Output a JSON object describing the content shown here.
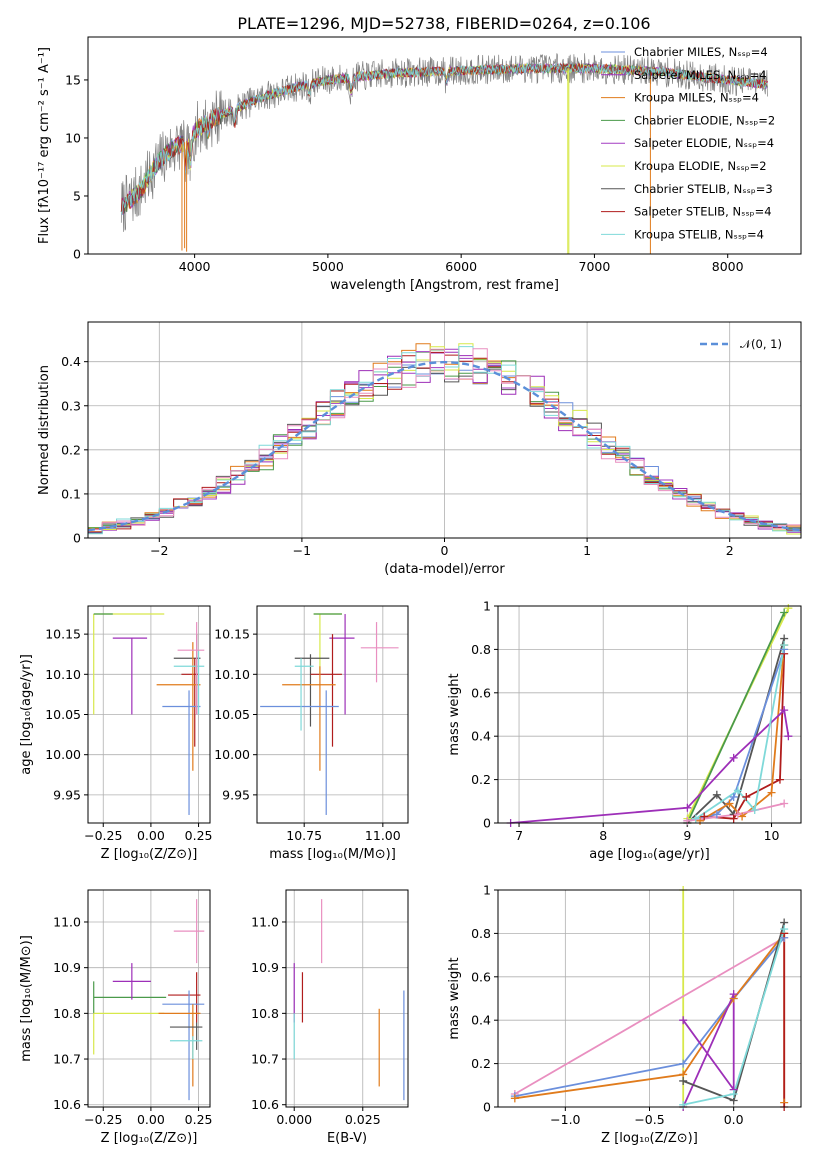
{
  "figure_title": "PLATE=1296, MJD=52738, FIBERID=0264, z=0.106",
  "colors": {
    "Chabrier MILES": "#6b8fdc",
    "Salpeter MILES": "#9d2fb8",
    "Kroupa MILES": "#e07b1c",
    "Chabrier ELODIE": "#4a9a4a",
    "Salpeter ELODIE": "#a33cc2",
    "Kroupa ELODIE": "#d7e84a",
    "Chabrier STELIB": "#555555",
    "Salpeter STELIB": "#b01c1c",
    "Kroupa STELIB": "#7fd9d9",
    "pink": "#e98fc0",
    "data": "#808080",
    "normal": "#5b8fd9"
  },
  "chart_data": [
    {
      "id": "spectrum",
      "type": "line",
      "title": "PLATE=1296, MJD=52738, FIBERID=0264, z=0.106",
      "xlabel": "wavelength [Angstrom, rest frame]",
      "ylabel": "Flux [fλ10⁻¹⁷ erg cm⁻² s⁻¹ A⁻¹]",
      "xlim": [
        3200,
        8550
      ],
      "ylim": [
        0,
        18.7
      ],
      "xticks": [
        4000,
        5000,
        6000,
        7000,
        8000
      ],
      "yticks": [
        0,
        5,
        10,
        15
      ],
      "grid": false,
      "legend_position": "upper-right",
      "legend": [
        "Chabrier MILES, Nₛₛₚ=4",
        "Salpeter MILES, Nₛₛₚ=4",
        "Kroupa MILES, Nₛₛₚ=4",
        "Chabrier ELODIE, Nₛₛₚ=2",
        "Salpeter ELODIE, Nₛₛₚ=4",
        "Kroupa ELODIE, Nₛₛₚ=2",
        "Chabrier STELIB, Nₛₛₚ=3",
        "Salpeter STELIB, Nₛₛₚ=4",
        "Kroupa STELIB, Nₛₛₚ=4"
      ],
      "x_range": [
        3450,
        8300
      ],
      "continuum": [
        [
          3450,
          4
        ],
        [
          3600,
          5.5
        ],
        [
          3700,
          7.5
        ],
        [
          3800,
          8.8
        ],
        [
          3950,
          9.8
        ],
        [
          4000,
          10.5
        ],
        [
          4100,
          11.5
        ],
        [
          4300,
          12.5
        ],
        [
          4500,
          13.5
        ],
        [
          4800,
          14.5
        ],
        [
          5000,
          15
        ],
        [
          5500,
          15.6
        ],
        [
          6000,
          15.8
        ],
        [
          6500,
          16
        ],
        [
          7000,
          16
        ],
        [
          7500,
          15.7
        ],
        [
          8000,
          15
        ],
        [
          8300,
          14.6
        ]
      ],
      "features": [
        {
          "x": 3933,
          "depth": 2.5
        },
        {
          "x": 3968,
          "depth": 2.5
        },
        {
          "x": 4101,
          "depth": 1
        },
        {
          "x": 4300,
          "depth": 1.5
        },
        {
          "x": 4861,
          "depth": 1
        },
        {
          "x": 5175,
          "depth": 1.5
        },
        {
          "x": 5890,
          "depth": 1
        }
      ],
      "glitches": [
        {
          "x": 3905,
          "y": 0.3
        },
        {
          "x": 3925,
          "y": 0.5
        },
        {
          "x": 3940,
          "y": 0.2
        },
        {
          "x": 6800,
          "y": 0
        },
        {
          "x": 6808,
          "y": 0
        },
        {
          "x": 7420,
          "y": 0
        }
      ]
    },
    {
      "id": "residuals",
      "type": "line",
      "xlabel": "(data-model)/error",
      "ylabel": "Normed distribution",
      "xlim": [
        -2.5,
        2.5
      ],
      "ylim": [
        0,
        0.49
      ],
      "xticks": [
        -2,
        -1,
        0,
        1,
        2
      ],
      "yticks": [
        0.0,
        0.1,
        0.2,
        0.3,
        0.4
      ],
      "grid": true,
      "legend_position": "upper-right",
      "legend": [
        "𝒩(0, 1)"
      ],
      "bin_width": 0.1,
      "mu": 0,
      "sigma": 1
    },
    {
      "id": "age-vs-Z",
      "type": "scatter",
      "xlabel": "Z [log₁₀(Z/Z⊙)]",
      "ylabel": "age  [log₁₀(age/yr)]",
      "xlim": [
        -0.33,
        0.31
      ],
      "ylim": [
        9.915,
        10.185
      ],
      "xticks": [
        -0.25,
        0,
        0.25
      ],
      "xticklabels": [
        "−0.25",
        "0.00",
        "0.25"
      ],
      "yticks": [
        9.95,
        10.0,
        10.05,
        10.1,
        10.15
      ],
      "yticklabels": [
        "9.95",
        "10.00",
        "10.05",
        "10.10",
        "10.15"
      ],
      "grid": true,
      "points": [
        {
          "c": "Kroupa ELODIE",
          "x": -0.3,
          "y": 10.175,
          "xl": -0.3,
          "xh": 0.07,
          "yl": 10.05,
          "yh": 10.175
        },
        {
          "c": "Chabrier ELODIE",
          "x": -0.3,
          "y": 10.175,
          "xl": -0.3,
          "xh": -0.2,
          "yl": 10.175,
          "yh": 10.175
        },
        {
          "c": "Salpeter MILES",
          "x": -0.1,
          "y": 10.145,
          "xl": -0.2,
          "xh": -0.02,
          "yl": 10.05,
          "yh": 10.145
        },
        {
          "c": "Chabrier STELIB",
          "x": 0.24,
          "y": 10.12,
          "xl": 0.12,
          "xh": 0.26,
          "yl": 10.05,
          "yh": 10.15
        },
        {
          "c": "Salpeter STELIB",
          "x": 0.23,
          "y": 10.1,
          "xl": 0.16,
          "xh": 0.25,
          "yl": 10.01,
          "yh": 10.12
        },
        {
          "c": "Kroupa MILES",
          "x": 0.22,
          "y": 10.087,
          "xl": 0.03,
          "xh": 0.26,
          "yl": 9.98,
          "yh": 10.14
        },
        {
          "c": "Chabrier MILES",
          "x": 0.2,
          "y": 10.06,
          "xl": 0.06,
          "xh": 0.26,
          "yl": 9.925,
          "yh": 10.08
        },
        {
          "c": "Kroupa STELIB",
          "x": 0.25,
          "y": 10.11,
          "xl": 0.12,
          "xh": 0.28,
          "yl": 10.05,
          "yh": 10.13
        },
        {
          "c": "pink",
          "x": 0.24,
          "y": 10.13,
          "xl": 0.14,
          "xh": 0.28,
          "yl": 10.05,
          "yh": 10.165
        }
      ]
    },
    {
      "id": "age-vs-mass",
      "type": "scatter",
      "xlabel": "mass [log₁₀(M/M⊙)]",
      "ylabel": "",
      "xlim": [
        10.6,
        11.08
      ],
      "ylim": [
        9.915,
        10.185
      ],
      "xticks": [
        10.75,
        11.0
      ],
      "xticklabels": [
        "10.75",
        "11.00"
      ],
      "yticks": [
        9.95,
        10.0,
        10.05,
        10.1,
        10.15
      ],
      "yticklabels": [
        "9.95",
        "10.00",
        "10.05",
        "10.10",
        "10.15"
      ],
      "grid": true,
      "points": [
        {
          "c": "Kroupa ELODIE",
          "x": 10.8,
          "y": 10.175,
          "xl": 10.78,
          "xh": 10.87,
          "yl": 10.1,
          "yh": 10.175
        },
        {
          "c": "Chabrier ELODIE",
          "x": 10.84,
          "y": 10.175,
          "xl": 10.78,
          "xh": 10.87,
          "yl": 10.175,
          "yh": 10.175
        },
        {
          "c": "Salpeter MILES",
          "x": 10.88,
          "y": 10.145,
          "xl": 10.83,
          "xh": 10.91,
          "yl": 10.05,
          "yh": 10.175
        },
        {
          "c": "Chabrier STELIB",
          "x": 10.77,
          "y": 10.12,
          "xl": 10.72,
          "xh": 10.83,
          "yl": 10.035,
          "yh": 10.125
        },
        {
          "c": "Salpeter STELIB",
          "x": 10.84,
          "y": 10.1,
          "xl": 10.77,
          "xh": 10.87,
          "yl": 10.01,
          "yh": 10.15
        },
        {
          "c": "Kroupa MILES",
          "x": 10.8,
          "y": 10.087,
          "xl": 10.68,
          "xh": 10.85,
          "yl": 9.98,
          "yh": 10.11
        },
        {
          "c": "Chabrier MILES",
          "x": 10.82,
          "y": 10.06,
          "xl": 10.61,
          "xh": 10.86,
          "yl": 9.925,
          "yh": 10.08
        },
        {
          "c": "Kroupa STELIB",
          "x": 10.74,
          "y": 10.11,
          "xl": 10.72,
          "xh": 10.78,
          "yl": 10.03,
          "yh": 10.12
        },
        {
          "c": "pink",
          "x": 10.98,
          "y": 10.133,
          "xl": 10.93,
          "xh": 11.05,
          "yl": 10.09,
          "yh": 10.165
        }
      ]
    },
    {
      "id": "mass-weight-vs-age",
      "type": "line",
      "xlabel": "age  [log₁₀(age/yr)]",
      "ylabel": "mass weight",
      "xlim": [
        6.75,
        10.35
      ],
      "ylim": [
        0,
        1.0
      ],
      "xticks": [
        7,
        8,
        9,
        10
      ],
      "yticks": [
        0.0,
        0.2,
        0.4,
        0.6,
        0.8,
        1.0
      ],
      "grid": true,
      "series": [
        {
          "c": "Kroupa ELODIE",
          "x": [
            9.0,
            10.2
          ],
          "y": [
            0.02,
            0.99
          ]
        },
        {
          "c": "Chabrier ELODIE",
          "x": [
            9.0,
            10.15
          ],
          "y": [
            0.0,
            0.97
          ]
        },
        {
          "c": "Chabrier STELIB",
          "x": [
            9.0,
            9.35,
            9.55,
            10.15
          ],
          "y": [
            0.0,
            0.13,
            0.04,
            0.85
          ]
        },
        {
          "c": "Salpeter STELIB",
          "x": [
            9.2,
            9.55,
            9.7,
            10.1,
            10.15
          ],
          "y": [
            0.03,
            0.02,
            0.12,
            0.2,
            0.78
          ]
        },
        {
          "c": "Chabrier MILES",
          "x": [
            9.0,
            9.35,
            9.55,
            10.15
          ],
          "y": [
            0.01,
            0.04,
            0.12,
            0.8
          ]
        },
        {
          "c": "Kroupa MILES",
          "x": [
            9.15,
            9.5,
            9.65,
            10.0,
            10.15
          ],
          "y": [
            0.01,
            0.09,
            0.03,
            0.14,
            0.82
          ]
        },
        {
          "c": "Salpeter MILES",
          "x": [
            6.9,
            9.0,
            9.55,
            10.15,
            10.2
          ],
          "y": [
            0.0,
            0.07,
            0.3,
            0.52,
            0.4
          ]
        },
        {
          "c": "Kroupa STELIB",
          "x": [
            9.1,
            9.6,
            9.8,
            10.15
          ],
          "y": [
            0.02,
            0.15,
            0.06,
            0.82
          ]
        },
        {
          "c": "pink",
          "x": [
            9.0,
            9.6,
            10.15
          ],
          "y": [
            0.01,
            0.04,
            0.09
          ]
        }
      ]
    },
    {
      "id": "mass-vs-Z",
      "type": "scatter",
      "xlabel": "Z [log₁₀(Z/Z⊙)]",
      "ylabel": "mass [log₁₀(M/M⊙)]",
      "xlim": [
        -0.33,
        0.31
      ],
      "ylim": [
        10.595,
        11.07
      ],
      "xticks": [
        -0.25,
        0,
        0.25
      ],
      "xticklabels": [
        "−0.25",
        "0.00",
        "0.25"
      ],
      "yticks": [
        10.6,
        10.7,
        10.8,
        10.9,
        11.0
      ],
      "yticklabels": [
        "10.6",
        "10.7",
        "10.8",
        "10.9",
        "11.0"
      ],
      "grid": true,
      "points": [
        {
          "c": "Chabrier ELODIE",
          "x": -0.3,
          "y": 10.835,
          "xl": -0.3,
          "xh": 0.08,
          "yl": 10.8,
          "yh": 10.87
        },
        {
          "c": "Kroupa ELODIE",
          "x": -0.3,
          "y": 10.8,
          "xl": -0.3,
          "xh": 0.07,
          "yl": 10.71,
          "yh": 10.8
        },
        {
          "c": "Salpeter MILES",
          "x": -0.1,
          "y": 10.87,
          "xl": -0.2,
          "xh": 0.0,
          "yl": 10.83,
          "yh": 10.91
        },
        {
          "c": "pink",
          "x": 0.24,
          "y": 10.98,
          "xl": 0.12,
          "xh": 0.28,
          "yl": 10.91,
          "yh": 11.05
        },
        {
          "c": "Salpeter STELIB",
          "x": 0.24,
          "y": 10.84,
          "xl": 0.09,
          "xh": 0.26,
          "yl": 10.78,
          "yh": 10.89
        },
        {
          "c": "Chabrier MILES",
          "x": 0.2,
          "y": 10.82,
          "xl": 0.06,
          "xh": 0.28,
          "yl": 10.61,
          "yh": 10.85
        },
        {
          "c": "Kroupa MILES",
          "x": 0.22,
          "y": 10.8,
          "xl": 0.04,
          "xh": 0.26,
          "yl": 10.64,
          "yh": 10.82
        },
        {
          "c": "Chabrier STELIB",
          "x": 0.24,
          "y": 10.77,
          "xl": 0.1,
          "xh": 0.27,
          "yl": 10.72,
          "yh": 10.78
        },
        {
          "c": "Kroupa STELIB",
          "x": 0.22,
          "y": 10.74,
          "xl": 0.1,
          "xh": 0.27,
          "yl": 10.7,
          "yh": 10.75
        }
      ]
    },
    {
      "id": "mass-vs-EBV",
      "type": "scatter",
      "xlabel": "E(B-V)",
      "ylabel": "",
      "xlim": [
        -0.003,
        0.0415
      ],
      "ylim": [
        10.595,
        11.07
      ],
      "xticks": [
        0,
        0.025
      ],
      "xticklabels": [
        "0.000",
        "0.025"
      ],
      "yticks": [
        10.6,
        10.7,
        10.8,
        10.9,
        11.0
      ],
      "yticklabels": [
        "10.6",
        "10.7",
        "10.8",
        "10.9",
        "11.0"
      ],
      "grid": true,
      "points": [
        {
          "c": "pink",
          "x": 0.01,
          "y": 10.98,
          "xl": 0.01,
          "xh": 0.01,
          "yl": 10.91,
          "yh": 11.05
        },
        {
          "c": "Salpeter STELIB",
          "x": 0.003,
          "y": 10.84,
          "xl": 0.003,
          "xh": 0.003,
          "yl": 10.78,
          "yh": 10.89
        },
        {
          "c": "Salpeter MILES",
          "x": 0.0,
          "y": 10.87,
          "xl": 0.0,
          "xh": 0.0,
          "yl": 10.78,
          "yh": 10.91
        },
        {
          "c": "Kroupa STELIB",
          "x": 0.0,
          "y": 10.74,
          "xl": 0.0,
          "xh": 0.0,
          "yl": 10.7,
          "yh": 10.8
        },
        {
          "c": "Kroupa MILES",
          "x": 0.031,
          "y": 10.72,
          "xl": 0.031,
          "xh": 0.031,
          "yl": 10.64,
          "yh": 10.81
        },
        {
          "c": "Chabrier MILES",
          "x": 0.04,
          "y": 10.73,
          "xl": 0.04,
          "xh": 0.04,
          "yl": 10.61,
          "yh": 10.85
        }
      ]
    },
    {
      "id": "mass-weight-vs-Z",
      "type": "line",
      "xlabel": "Z [log₁₀(Z/Z⊙)]",
      "ylabel": "mass weight",
      "xlim": [
        -1.4,
        0.4
      ],
      "ylim": [
        0,
        1.0
      ],
      "xticks": [
        -1.0,
        -0.5,
        0.0
      ],
      "xticklabels": [
        "−1.0",
        "−0.5",
        "0.0"
      ],
      "yticks": [
        0.0,
        0.2,
        0.4,
        0.6,
        0.8,
        1.0
      ],
      "grid": true,
      "series": [
        {
          "c": "Kroupa ELODIE",
          "x": [
            -0.3,
            -0.3
          ],
          "y": [
            0.0,
            1.0
          ]
        },
        {
          "c": "pink",
          "x": [
            -1.3,
            0.3
          ],
          "y": [
            0.06,
            0.78
          ]
        },
        {
          "c": "Chabrier MILES",
          "x": [
            -1.3,
            -0.3,
            0.0,
            0.3
          ],
          "y": [
            0.05,
            0.2,
            0.5,
            0.78
          ]
        },
        {
          "c": "Kroupa MILES",
          "x": [
            -1.3,
            -0.3,
            0.0,
            0.3,
            0.3
          ],
          "y": [
            0.04,
            0.15,
            0.5,
            0.8,
            0.02
          ]
        },
        {
          "c": "Salpeter MILES",
          "x": [
            -0.3,
            0.0,
            0.0,
            -0.3
          ],
          "y": [
            0.4,
            0.08,
            0.52,
            0.0
          ]
        },
        {
          "c": "Chabrier STELIB",
          "x": [
            -0.3,
            0.0,
            0.3
          ],
          "y": [
            0.12,
            0.03,
            0.85
          ]
        },
        {
          "c": "Salpeter STELIB",
          "x": [
            0.3,
            0.3
          ],
          "y": [
            0.8,
            0.0
          ]
        },
        {
          "c": "Kroupa STELIB",
          "x": [
            -0.3,
            0.0,
            0.3
          ],
          "y": [
            0.01,
            0.06,
            0.82
          ]
        }
      ]
    }
  ]
}
